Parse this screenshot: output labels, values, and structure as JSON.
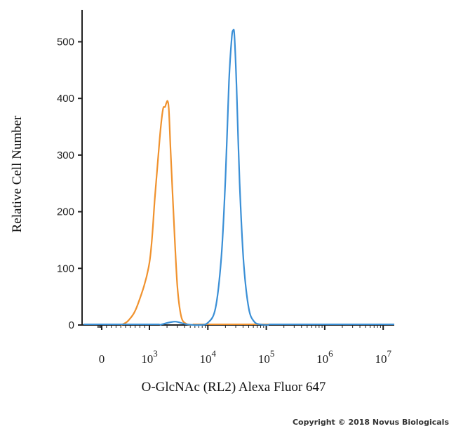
{
  "chart_data": {
    "type": "line",
    "xlabel": "O-GlcNAc (RL2) Alexa Fluor 647",
    "ylabel": "Relative Cell Number",
    "x_scale": "biexponential-log",
    "xlim": [
      -100,
      10000000
    ],
    "ylim": [
      0,
      540
    ],
    "y_ticks": [
      0,
      100,
      200,
      300,
      400,
      500
    ],
    "x_ticks": [
      {
        "value": 0,
        "label": "0",
        "exp": ""
      },
      {
        "value": 1000,
        "label": "10",
        "exp": "3"
      },
      {
        "value": 10000,
        "label": "10",
        "exp": "4"
      },
      {
        "value": 100000,
        "label": "10",
        "exp": "5"
      },
      {
        "value": 1000000,
        "label": "10",
        "exp": "6"
      },
      {
        "value": 10000000,
        "label": "10",
        "exp": "7"
      }
    ],
    "series": [
      {
        "color": "#f0922e",
        "points": [
          [
            400,
            0
          ],
          [
            560,
            8
          ],
          [
            750,
            35
          ],
          [
            1000,
            110
          ],
          [
            1250,
            230
          ],
          [
            1500,
            330
          ],
          [
            1700,
            380
          ],
          [
            1850,
            385
          ],
          [
            1950,
            392
          ],
          [
            2050,
            395
          ],
          [
            2150,
            380
          ],
          [
            2300,
            310
          ],
          [
            2600,
            190
          ],
          [
            3000,
            70
          ],
          [
            3500,
            15
          ],
          [
            4300,
            2
          ],
          [
            5500,
            0
          ]
        ]
      },
      {
        "color": "#3a8fd6",
        "points": [
          [
            1500,
            0
          ],
          [
            1900,
            3
          ],
          [
            2300,
            5
          ],
          [
            2800,
            6
          ],
          [
            3400,
            4
          ],
          [
            4500,
            1
          ],
          [
            7000,
            0
          ],
          [
            10000,
            4
          ],
          [
            13500,
            30
          ],
          [
            17000,
            120
          ],
          [
            20000,
            260
          ],
          [
            23000,
            430
          ],
          [
            25500,
            505
          ],
          [
            27000,
            520
          ],
          [
            28500,
            510
          ],
          [
            31000,
            420
          ],
          [
            35000,
            250
          ],
          [
            41000,
            110
          ],
          [
            50000,
            30
          ],
          [
            62000,
            6
          ],
          [
            80000,
            1
          ],
          [
            110000,
            0
          ]
        ]
      }
    ]
  },
  "copyright": "Copyright © 2018 Novus Biologicals"
}
